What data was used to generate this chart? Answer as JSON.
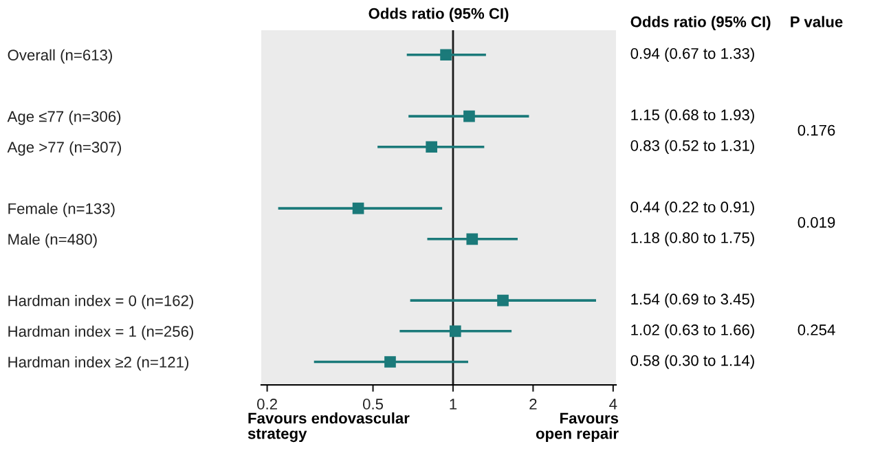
{
  "chart_data": {
    "type": "scatter",
    "orientation": "horizontal",
    "title": "Odds ratio (95% CI)",
    "categories": [
      "Overall (n=613)",
      null,
      "Age ≤77 (n=306)",
      "Age >77 (n=307)",
      null,
      "Female (n=133)",
      "Male (n=480)",
      null,
      "Hardman index = 0 (n=162)",
      "Hardman index = 1 (n=256)",
      "Hardman index ≥2 (n=121)"
    ],
    "values": [
      0.94,
      null,
      1.15,
      0.83,
      null,
      0.44,
      1.18,
      null,
      1.54,
      1.02,
      0.58
    ],
    "errors": [
      [
        0.67,
        1.33
      ],
      null,
      [
        0.68,
        1.93
      ],
      [
        0.52,
        1.31
      ],
      null,
      [
        0.22,
        0.91
      ],
      [
        0.8,
        1.75
      ],
      null,
      [
        0.69,
        3.45
      ],
      [
        0.63,
        1.66
      ],
      [
        0.3,
        1.14
      ]
    ],
    "value_labels": [
      "0.94 (0.67 to 1.33)",
      null,
      "1.15 (0.68 to 1.93)",
      "0.83 (0.52 to 1.31)",
      null,
      "0.44 (0.22 to 0.91)",
      "1.18 (0.80 to 1.75)",
      null,
      "1.54 (0.69 to 3.45)",
      "1.02 (0.63 to 1.66)",
      "0.58 (0.30 to 1.14)"
    ],
    "color": "#1b7a7a",
    "marker": "square",
    "log": "x",
    "xlim": [
      0.19,
      4.1
    ],
    "xticks": [
      0.2,
      0.5,
      1,
      2,
      4
    ],
    "ref_lines": [
      {
        "axis": "x",
        "value": 1,
        "color": "#1a1a1a"
      }
    ],
    "grid": false,
    "annotations": [
      "Odds ratio (95% CI)",
      "P value",
      "0.176",
      "0.019",
      "0.254",
      "Favours endovascular\nstrategy",
      "Favours\nopen repair"
    ]
  }
}
